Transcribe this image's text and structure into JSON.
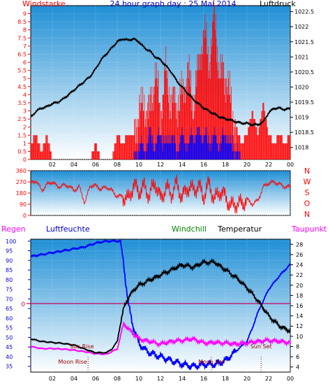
{
  "colors": {
    "panel_top": "#1f8fd6",
    "panel_bottom": "#ffffff",
    "wind_red": "#ff0000",
    "gust_blue": "#0000ff",
    "pressure_black": "#000000",
    "humidity_blue": "#0000ff",
    "dewpoint_magenta": "#ff00ff",
    "windchill_green": "#008000",
    "rain_magenta": "#cc0066",
    "astro_red": "#a00000",
    "title_blue": "#0000cc"
  },
  "chart_data": [
    {
      "type": "line",
      "title": "24 hour graph day : 25 Mai 2014",
      "ylabel": "Windstarke",
      "y2label": "Luftdruck",
      "x_ticks": [
        "02",
        "04",
        "06",
        "08",
        "10",
        "12",
        "14",
        "16",
        "18",
        "20",
        "22",
        "00"
      ],
      "x_range": [
        0,
        24
      ],
      "ylim": [
        0,
        9.5
      ],
      "y_ticks": [
        "0",
        "0.5",
        "1",
        "1.5",
        "2",
        "2.5",
        "3",
        "3.5",
        "4",
        "4.5",
        "5",
        "5.5",
        "6",
        "6.5",
        "7",
        "7.5",
        "8",
        "8.5",
        "9"
      ],
      "y2lim": [
        1017.6,
        1022.7
      ],
      "y2_ticks": [
        "1018",
        "1018.5",
        "1019",
        "1019.5",
        "1020",
        "1020.5",
        "1021",
        "1021.5",
        "1022",
        "1022.5"
      ],
      "series": [
        {
          "kind": "pressure",
          "x": [
            0,
            0.5,
            1,
            1.5,
            2,
            2.5,
            3,
            3.5,
            4,
            4.5,
            5,
            5.5,
            6,
            6.5,
            7,
            7.5,
            8,
            8.5,
            9,
            9.5,
            10,
            10.5,
            11,
            11.5,
            12,
            12.5,
            13,
            13.5,
            14,
            14.5,
            15,
            15.5,
            16,
            16.5,
            17,
            17.5,
            18,
            18.5,
            19,
            19.5,
            20,
            20.5,
            21,
            21.5,
            22,
            22.5,
            23,
            23.5,
            24
          ],
          "y": [
            1019.0,
            1019.2,
            1019.3,
            1019.35,
            1019.45,
            1019.5,
            1019.6,
            1019.75,
            1019.9,
            1020.05,
            1020.2,
            1020.35,
            1020.6,
            1020.9,
            1021.1,
            1021.3,
            1021.5,
            1021.6,
            1021.55,
            1021.6,
            1021.5,
            1021.3,
            1021.2,
            1021.0,
            1020.9,
            1020.7,
            1020.5,
            1020.2,
            1020.0,
            1019.8,
            1019.6,
            1019.45,
            1019.3,
            1019.2,
            1019.1,
            1019.0,
            1018.95,
            1018.9,
            1018.85,
            1018.8,
            1018.8,
            1018.75,
            1018.75,
            1018.85,
            1019.15,
            1019.3,
            1019.3,
            1019.25,
            1019.3
          ]
        },
        {
          "kind": "wind",
          "x": [
            0,
            0.5,
            1,
            1.5,
            2,
            2.5,
            3,
            3.5,
            4,
            4.5,
            5,
            5.5,
            6,
            6.5,
            7,
            7.5,
            8,
            8.5,
            9,
            9.5,
            10,
            10.5,
            11,
            11.5,
            12,
            12.5,
            13,
            13.5,
            14,
            14.5,
            15,
            15.5,
            16,
            16.5,
            17,
            17.5,
            18,
            18.5,
            19,
            19.5,
            20,
            20.5,
            21,
            21.5,
            22,
            22.5,
            23,
            23.5,
            24
          ],
          "y": [
            1,
            1.5,
            0.5,
            1.5,
            0,
            0,
            0,
            0,
            0,
            0,
            0,
            0,
            1,
            0,
            0,
            0,
            1.5,
            1,
            1.5,
            1.5,
            3,
            3.5,
            3,
            5.5,
            3,
            5.5,
            3.5,
            3.5,
            4,
            5.5,
            3.5,
            5.5,
            8,
            6,
            9,
            5,
            5.5,
            3.5,
            2,
            1,
            1.5,
            3,
            1.5,
            3.5,
            1.5,
            1,
            1.5,
            1,
            1.5
          ]
        },
        {
          "kind": "gust",
          "x": [
            0,
            0.5,
            1,
            1.5,
            2,
            2.5,
            3,
            3.5,
            4,
            4.5,
            5,
            5.5,
            6,
            6.5,
            7,
            7.5,
            8,
            8.5,
            9,
            9.5,
            10,
            10.5,
            11,
            11.5,
            12,
            12.5,
            13,
            13.5,
            14,
            14.5,
            15,
            15.5,
            16,
            16.5,
            17,
            17.5,
            18,
            18.5,
            19,
            19.5,
            20,
            20.5,
            21,
            21.5,
            22,
            22.5,
            23,
            23.5,
            24
          ],
          "y": [
            0,
            0,
            0,
            0,
            0,
            0,
            0,
            0,
            0,
            0,
            0,
            0,
            0,
            0,
            0,
            0,
            0,
            0,
            0,
            0,
            1,
            0.5,
            1.5,
            1,
            1.5,
            1,
            1.5,
            0.5,
            1.5,
            1,
            1.5,
            1.5,
            1.5,
            1,
            1.5,
            1,
            1.5,
            1,
            0.5,
            0,
            0,
            0,
            0,
            0,
            0,
            0,
            0,
            0,
            0
          ]
        }
      ]
    },
    {
      "type": "line",
      "title": "",
      "x_ticks": [
        "02",
        "04",
        "06",
        "08",
        "10",
        "12",
        "14",
        "16",
        "18",
        "20",
        "22",
        "00"
      ],
      "ylim": [
        0,
        360
      ],
      "y_ticks": [
        "0",
        "90",
        "180",
        "270",
        "360"
      ],
      "compass": [
        "N",
        "W",
        "S",
        "O",
        "N"
      ],
      "series": [
        {
          "kind": "direction",
          "x": [
            0,
            0.5,
            1,
            1.5,
            2,
            2.5,
            3,
            3.5,
            4,
            4.5,
            5,
            5.5,
            6,
            6.5,
            7,
            7.5,
            8,
            8.5,
            9,
            9.5,
            10,
            10.5,
            11,
            11.5,
            12,
            12.5,
            13,
            13.5,
            14,
            14.5,
            15,
            15.5,
            16,
            16.5,
            17,
            17.5,
            18,
            18.5,
            19,
            19.5,
            20,
            20.5,
            21,
            21.5,
            22,
            22.5,
            23,
            23.5,
            24
          ],
          "y": [
            260,
            280,
            200,
            250,
            270,
            230,
            240,
            240,
            200,
            230,
            100,
            240,
            240,
            210,
            230,
            200,
            150,
            160,
            120,
            250,
            190,
            230,
            160,
            270,
            130,
            220,
            180,
            250,
            140,
            230,
            200,
            240,
            150,
            260,
            120,
            200,
            150,
            70,
            100,
            90,
            130,
            90,
            120,
            230,
            260,
            270,
            250,
            230,
            230
          ]
        }
      ]
    },
    {
      "type": "line",
      "title": "",
      "labels": [
        "Regen",
        "Luftfeuchte",
        "Windchill",
        "Temperatur",
        "Taupunkt"
      ],
      "x_ticks": [
        "02",
        "04",
        "06",
        "08",
        "10",
        "12",
        "14",
        "16",
        "18",
        "20",
        "22",
        "00"
      ],
      "ylim": [
        32,
        101
      ],
      "y_ticks": [
        "35",
        "40",
        "45",
        "50",
        "55",
        "60",
        "65",
        "70",
        "75",
        "80",
        "85",
        "90",
        "95",
        "100"
      ],
      "y2lim": [
        3,
        29
      ],
      "y2_ticks": [
        "4",
        "6",
        "8",
        "10",
        "12",
        "14",
        "16",
        "18",
        "20",
        "22",
        "24",
        "26",
        "28"
      ],
      "rain_value_label": "0",
      "annotations": [
        {
          "text": "Sun Rise",
          "x": 5.5
        },
        {
          "text": "Moon Rise",
          "x": 5.3
        },
        {
          "text": "Moon Set",
          "x": 16.7
        },
        {
          "text": "Sun Set",
          "x": 21.3
        }
      ],
      "series": [
        {
          "kind": "humidity",
          "x": [
            0,
            1,
            2,
            3,
            4,
            5,
            6,
            7,
            8,
            8.3,
            8.6,
            9,
            9.5,
            10,
            10.5,
            11,
            12,
            13,
            14,
            15,
            16,
            17,
            18,
            19,
            20,
            20.5,
            21,
            22,
            23,
            24
          ],
          "y": [
            92,
            93,
            94,
            95,
            96,
            97,
            99,
            100,
            100,
            100,
            88,
            68,
            55,
            47,
            44,
            42,
            40,
            38,
            36,
            35,
            36,
            36,
            38,
            43,
            48,
            55,
            63,
            75,
            82,
            88
          ]
        },
        {
          "kind": "temperature",
          "x": [
            0,
            1,
            2,
            3,
            4,
            5,
            6,
            7,
            7.5,
            8,
            8.3,
            8.6,
            9,
            9.5,
            10,
            11,
            12,
            13,
            14,
            15,
            16,
            17,
            18,
            19,
            20,
            21,
            22,
            23,
            24
          ],
          "y": [
            9.5,
            9,
            8.8,
            8.6,
            8.3,
            7.5,
            6.8,
            6.8,
            7.5,
            9,
            12.5,
            15.5,
            17.5,
            19,
            20,
            21,
            22,
            23,
            24,
            23.5,
            24.5,
            24.5,
            23,
            21.5,
            19.5,
            17,
            14,
            12,
            11
          ]
        },
        {
          "kind": "dewpoint",
          "x": [
            0,
            1,
            2,
            3,
            4,
            5,
            6,
            7,
            8,
            8.3,
            8.6,
            9,
            9.5,
            10,
            11,
            12,
            13,
            14,
            15,
            16,
            17,
            18,
            19,
            20,
            21,
            22,
            23,
            24
          ],
          "y": [
            8,
            7.6,
            7.6,
            7.5,
            7.3,
            7,
            6.6,
            6.5,
            7.5,
            10,
            12.5,
            11.5,
            10.5,
            9.5,
            9,
            8.5,
            9,
            9.2,
            9.5,
            8.7,
            8.8,
            8.7,
            8.5,
            8.7,
            9,
            9.2,
            9,
            8.8
          ]
        }
      ]
    }
  ]
}
